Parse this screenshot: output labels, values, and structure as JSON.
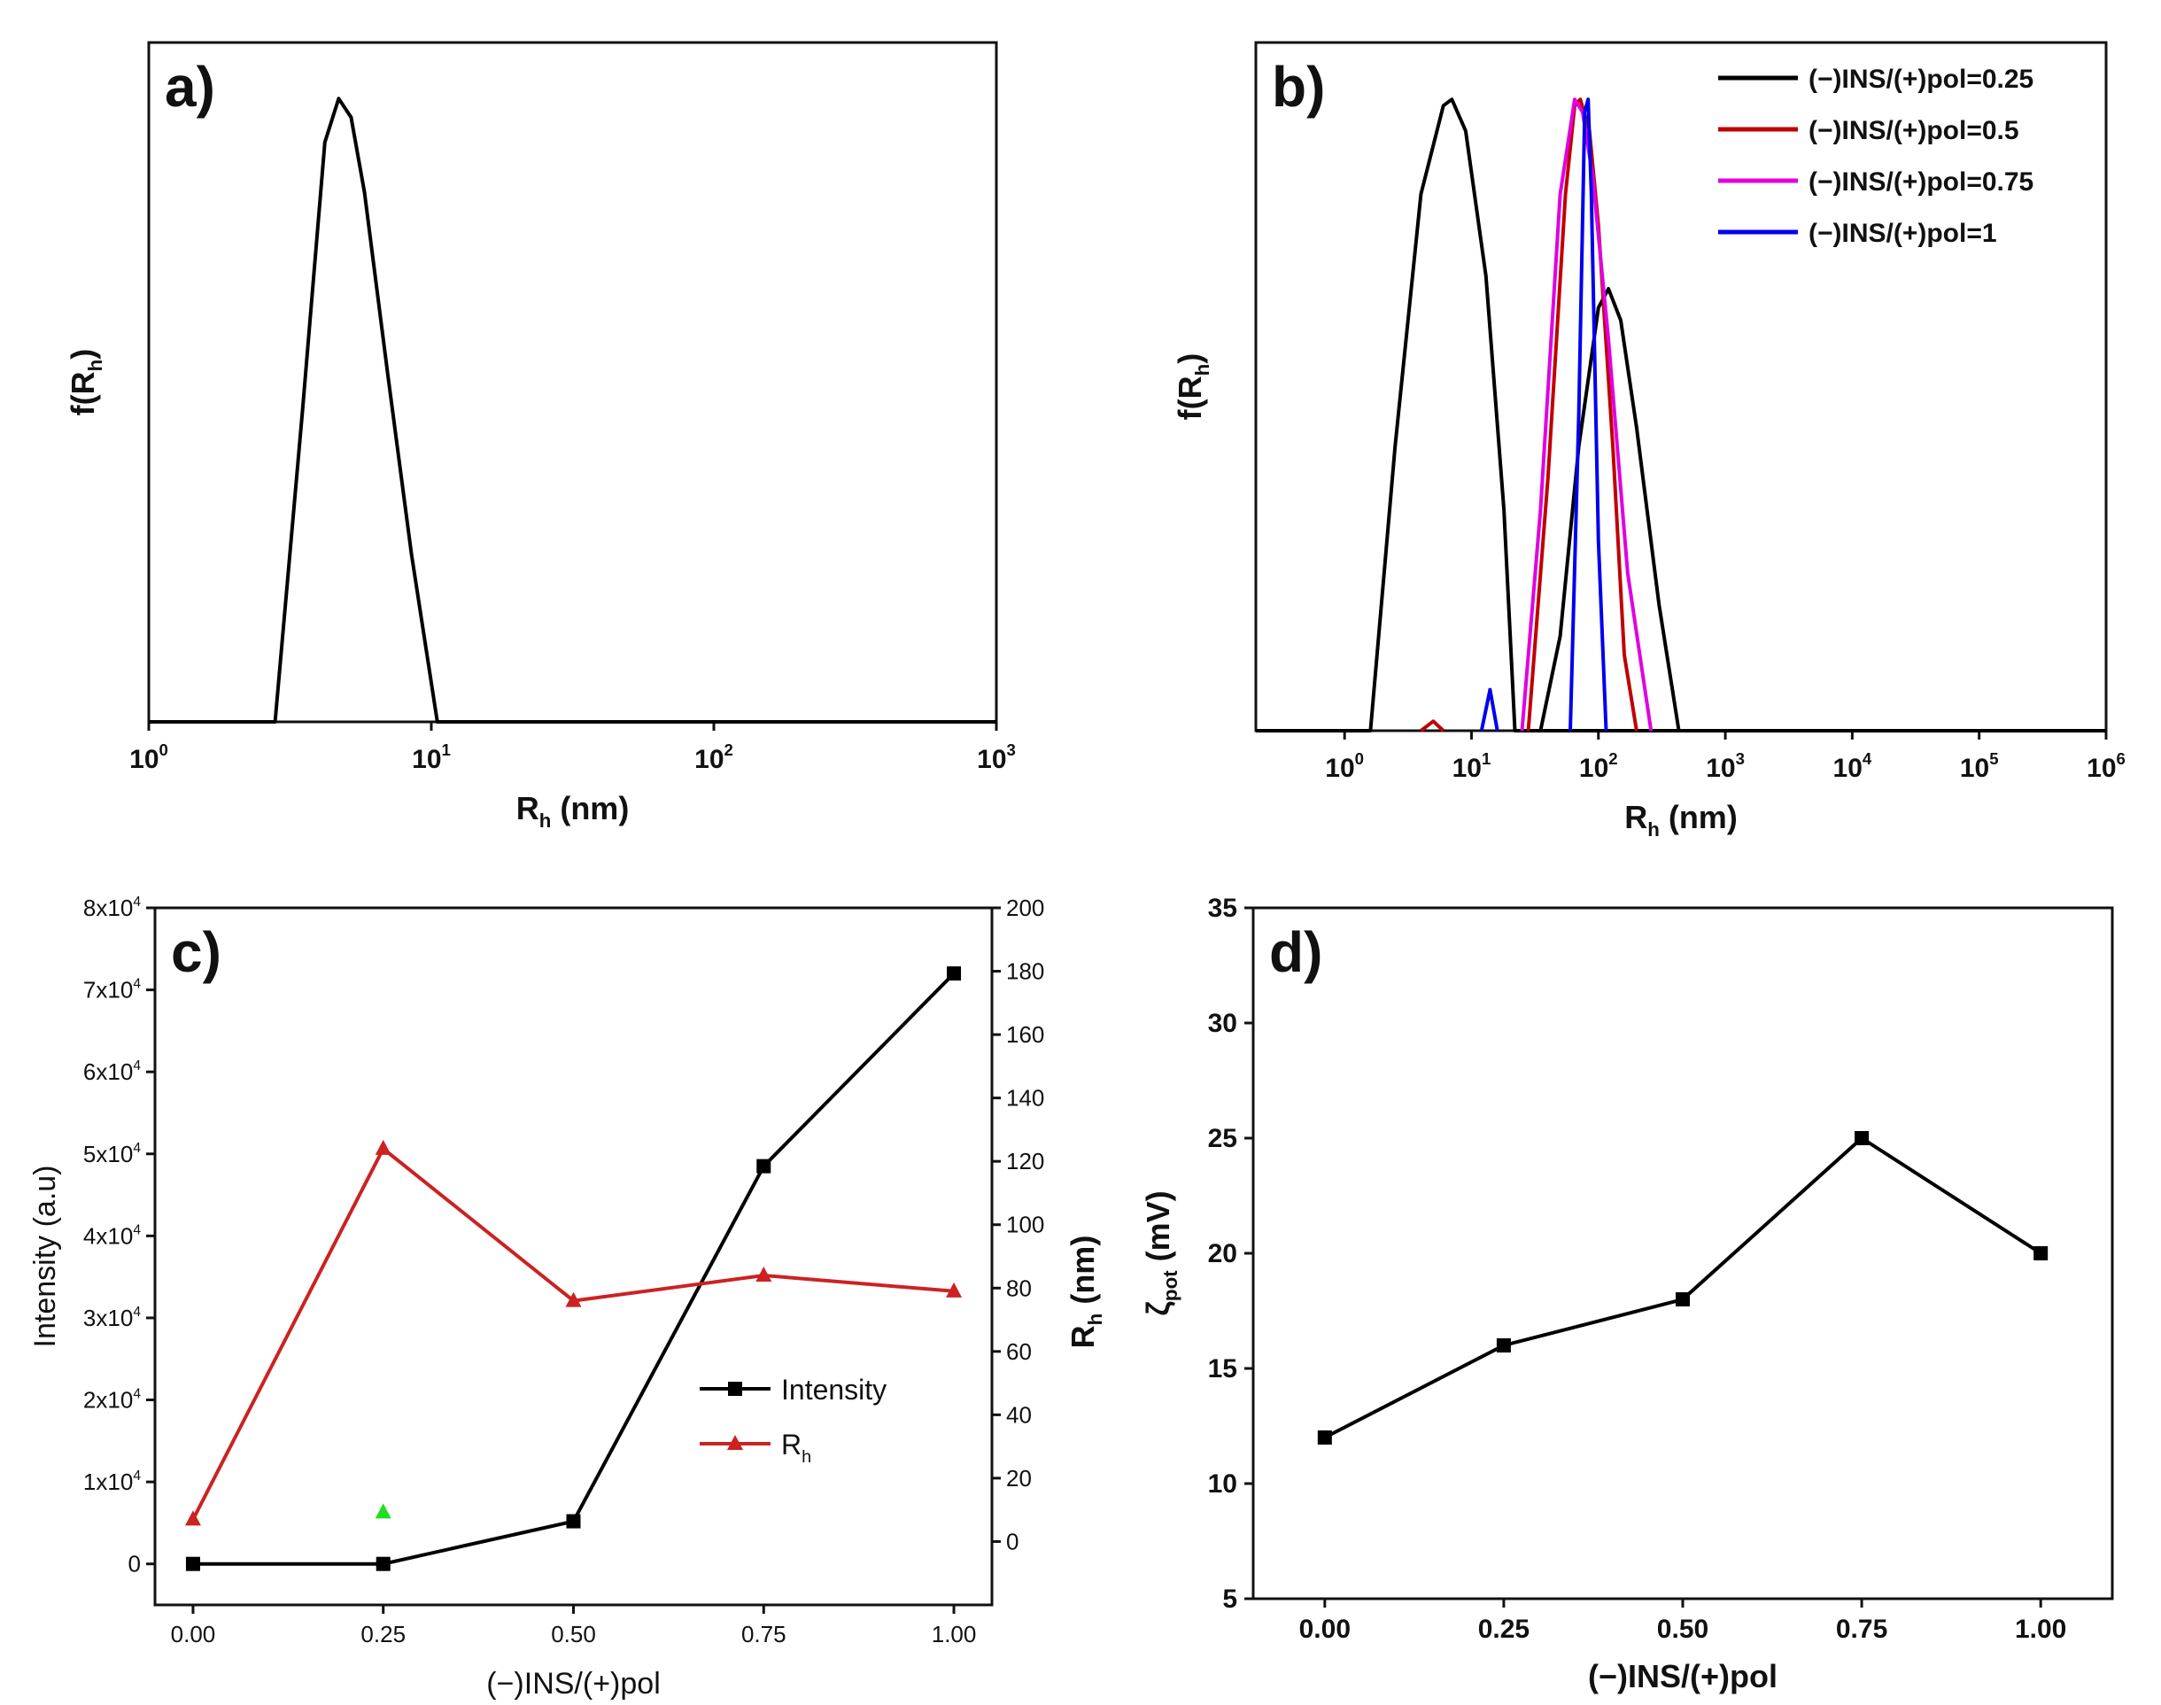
{
  "figure_panels": [
    "a)",
    "b)",
    "c)",
    "d)"
  ],
  "chart_data": [
    {
      "panel": "a)",
      "type": "line",
      "x_scale": "log10",
      "xlabel": "R_h (nm)",
      "ylabel": "f(R_h)",
      "xlim": [
        1,
        1000
      ],
      "ylim": [
        0,
        1.09
      ],
      "xticks": [
        {
          "base": "10",
          "exp": "0"
        },
        {
          "base": "10",
          "exp": "1"
        },
        {
          "base": "10",
          "exp": "2"
        },
        {
          "base": "10",
          "exp": "3"
        }
      ],
      "series": [
        {
          "name": "f(Rh)",
          "color": "#000000",
          "x": [
            1,
            2.8,
            3.5,
            4.2,
            4.7,
            5.2,
            5.8,
            7,
            8.5,
            10.5,
            1000
          ],
          "y": [
            0,
            0,
            0.5,
            0.93,
            1,
            0.97,
            0.85,
            0.56,
            0.27,
            0,
            0
          ]
        }
      ]
    },
    {
      "panel": "b)",
      "type": "line",
      "x_scale": "log10",
      "xlabel": "R_h (nm)",
      "ylabel": "f(R_h)",
      "xlim": [
        0.2,
        1000000
      ],
      "ylim": [
        0,
        1.09
      ],
      "xticks": [
        {
          "base": "10",
          "exp": "0"
        },
        {
          "base": "10",
          "exp": "1"
        },
        {
          "base": "10",
          "exp": "2"
        },
        {
          "base": "10",
          "exp": "3"
        },
        {
          "base": "10",
          "exp": "4"
        },
        {
          "base": "10",
          "exp": "5"
        },
        {
          "base": "10",
          "exp": "6"
        }
      ],
      "legend_position": "top-right",
      "series": [
        {
          "name": "(−)INS/(+)pol=0.25",
          "color": "#000000",
          "x": [
            [
              0.2,
              1.6,
              2.5,
              4,
              6,
              7,
              9,
              13,
              18,
              22,
              1000000
            ],
            [
              35,
              50,
              70,
              100,
              120,
              150,
              200,
              300,
              430
            ]
          ],
          "y": [
            [
              0,
              0,
              0.45,
              0.85,
              0.99,
              1,
              0.95,
              0.72,
              0.35,
              0,
              0
            ],
            [
              0,
              0.15,
              0.45,
              0.67,
              0.7,
              0.65,
              0.48,
              0.2,
              0
            ]
          ]
        },
        {
          "name": "(−)INS/(+)pol=0.5",
          "color": "#c00000",
          "x": [
            [
              4,
              5,
              6
            ],
            [
              28,
              40,
              55,
              65,
              72,
              85,
              100,
              130,
              160,
              200
            ]
          ],
          "y": [
            [
              0,
              0.015,
              0
            ],
            [
              0,
              0.4,
              0.85,
              0.99,
              1,
              0.95,
              0.8,
              0.45,
              0.12,
              0
            ]
          ]
        },
        {
          "name": "(−)INS/(+)pol=0.75",
          "color": "#e000e0",
          "x": [
            [
              25,
              35,
              50,
              65,
              75,
              90,
              120,
              170,
              260
            ]
          ],
          "y": [
            [
              0,
              0.35,
              0.85,
              1,
              0.98,
              0.88,
              0.62,
              0.25,
              0
            ]
          ]
        },
        {
          "name": "(−)INS/(+)pol=1",
          "color": "#0000ee",
          "x": [
            [
              12,
              14,
              16
            ],
            [
              60,
              70,
              78,
              83,
              88,
              100,
              115
            ]
          ],
          "y": [
            [
              0,
              0.065,
              0
            ],
            [
              0,
              0.5,
              0.98,
              1,
              0.85,
              0.3,
              0
            ]
          ]
        }
      ]
    },
    {
      "panel": "c)",
      "type": "line",
      "xlabel": "(−)INS/(+)pol",
      "ylabel_left": "Intensity (a.u)",
      "ylabel_right": "R_h (nm)",
      "xlim": [
        -0.05,
        1.05
      ],
      "ylim_left": [
        -5000,
        80000
      ],
      "ylim_right": [
        -20,
        200
      ],
      "xticks": [
        "0.00",
        "0.25",
        "0.50",
        "0.75",
        "1.00"
      ],
      "yticks_left": [
        {
          "lead": "0",
          "exp": ""
        },
        {
          "lead": "1x10",
          "exp": "4"
        },
        {
          "lead": "2x10",
          "exp": "4"
        },
        {
          "lead": "3x10",
          "exp": "4"
        },
        {
          "lead": "4x10",
          "exp": "4"
        },
        {
          "lead": "5x10",
          "exp": "4"
        },
        {
          "lead": "6x10",
          "exp": "4"
        },
        {
          "lead": "7x10",
          "exp": "4"
        },
        {
          "lead": "8x10",
          "exp": "4"
        }
      ],
      "yticks_right": [
        "0",
        "20",
        "40",
        "60",
        "80",
        "100",
        "120",
        "140",
        "160",
        "180",
        "200"
      ],
      "legend_position": "middle-right",
      "series": [
        {
          "name": "Intensity",
          "axis": "left",
          "color": "#000000",
          "marker": "square",
          "x": [
            0,
            0.25,
            0.5,
            0.75,
            1.0
          ],
          "y": [
            0,
            0,
            5200,
            48500,
            72000
          ]
        },
        {
          "name": "R_h",
          "axis": "right",
          "color": "#cc2222",
          "marker": "triangle",
          "x": [
            0,
            0.25,
            0.5,
            0.75,
            1.0
          ],
          "y": [
            7,
            124,
            76,
            84,
            79
          ]
        }
      ],
      "annotation": {
        "x": 0.25,
        "y": 7,
        "axis": "right",
        "color": "#22dd22",
        "marker": "triangle"
      }
    },
    {
      "panel": "d)",
      "type": "line",
      "xlabel": "(−)INS/(+)pol",
      "ylabel": "ζ_pot (mV)",
      "xlim": [
        -0.1,
        1.1
      ],
      "ylim": [
        5,
        35
      ],
      "xticks": [
        "0.00",
        "0.25",
        "0.50",
        "0.75",
        "1.00"
      ],
      "yticks": [
        "5",
        "10",
        "15",
        "20",
        "25",
        "30",
        "35"
      ],
      "series": [
        {
          "name": "zeta",
          "color": "#000000",
          "marker": "square",
          "x": [
            0,
            0.25,
            0.5,
            0.75,
            1.0
          ],
          "y": [
            12,
            16,
            18,
            25,
            20
          ]
        }
      ]
    }
  ]
}
